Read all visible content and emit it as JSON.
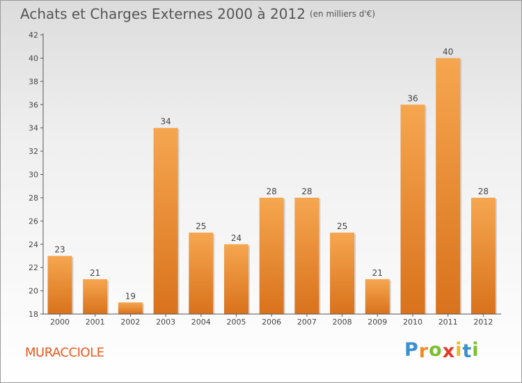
{
  "chart_data": {
    "type": "bar",
    "title": "Achats et Charges Externes 2000 à 2012",
    "unit_label": "(en milliers d'€)",
    "categories": [
      "2000",
      "2001",
      "2002",
      "2003",
      "2004",
      "2005",
      "2006",
      "2007",
      "2008",
      "2009",
      "2010",
      "2011",
      "2012"
    ],
    "values": [
      23,
      21,
      19,
      34,
      25,
      24,
      28,
      28,
      25,
      21,
      36,
      40,
      28
    ],
    "ylim": [
      18,
      42
    ],
    "yticks": [
      18,
      20,
      22,
      24,
      26,
      28,
      30,
      32,
      34,
      36,
      38,
      40,
      42
    ],
    "xlabel": "",
    "ylabel": "",
    "grid": false,
    "bar_color": "#ee8a2e"
  },
  "footer": {
    "town": "MURACCIOLE",
    "logo_letters": [
      "P",
      "r",
      "o",
      "x",
      "i",
      "t",
      "i"
    ],
    "logo_colors": [
      "#3a8fd0",
      "#f08a24",
      "#7bbf2e",
      "#e23a2a",
      "#f0b81e",
      "#3a8fd0",
      "#7bbf2e"
    ]
  }
}
